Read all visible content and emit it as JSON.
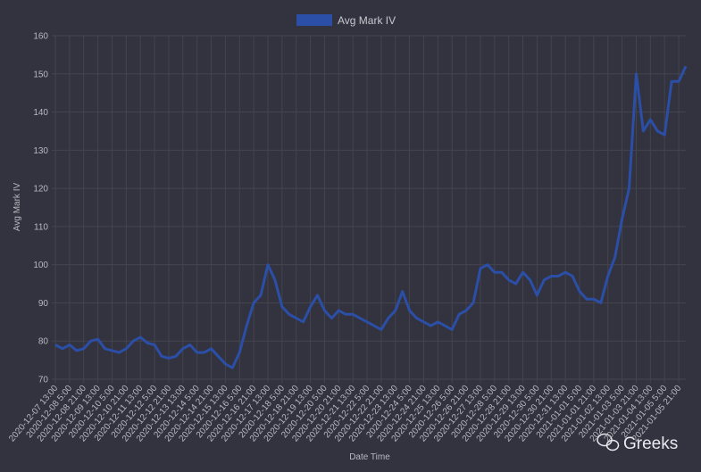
{
  "chart_data": {
    "type": "line",
    "y_label": "Avg Mark IV",
    "x_label": "Date Time",
    "watermark": "Greeks",
    "categories": [
      "2020-12-07 13:00",
      null,
      "2020-12-08 5:00",
      null,
      "2020-12-08 21:00",
      null,
      "2020-12-09 13:00",
      null,
      "2020-12-10 5:00",
      null,
      "2020-12-10 21:00",
      null,
      "2020-12-11 13:00",
      null,
      "2020-12-12 5:00",
      null,
      "2020-12-12 21:00",
      null,
      "2020-12-13 13:00",
      null,
      "2020-12-14 5:00",
      null,
      "2020-12-14 21:00",
      null,
      "2020-12-15 13:00",
      null,
      "2020-12-16 5:00",
      null,
      "2020-12-16 21:00",
      null,
      "2020-12-17 13:00",
      null,
      "2020-12-18 5:00",
      null,
      "2020-12-18 21:00",
      null,
      "2020-12-19 13:00",
      null,
      "2020-12-20 5:00",
      null,
      "2020-12-20 21:00",
      null,
      "2020-12-21 13:00",
      null,
      "2020-12-22 5:00",
      null,
      "2020-12-22 21:00",
      null,
      "2020-12-23 13:00",
      null,
      "2020-12-24 5:00",
      null,
      "2020-12-24 21:00",
      null,
      "2020-12-25 13:00",
      null,
      "2020-12-26 5:00",
      null,
      "2020-12-26 21:00",
      null,
      "2020-12-27 13:00",
      null,
      "2020-12-28 5:00",
      null,
      "2020-12-28 21:00",
      null,
      "2020-12-29 13:00",
      null,
      "2020-12-30 5:00",
      null,
      "2020-12-30 21:00",
      null,
      "2020-12-31 13:00",
      null,
      "2021-01-01 5:00",
      null,
      "2021-01-01 21:00",
      null,
      "2021-01-02 13:00",
      null,
      "2021-01-03 5:00",
      null,
      "2021-01-03 21:00",
      null,
      "2021-01-04 13:00",
      null,
      "2021-01-05 5:00",
      null,
      "2021-01-05 21:00",
      null
    ],
    "series": [
      {
        "name": "Avg Mark IV",
        "color": "#2b4ea6",
        "values": [
          79,
          78,
          79,
          77.5,
          78,
          80,
          80.5,
          78,
          77.5,
          77,
          78,
          80,
          81,
          79.5,
          79,
          76,
          75.5,
          76,
          78,
          79,
          77,
          77,
          78,
          76,
          74,
          73,
          77,
          84,
          90,
          92,
          100,
          96,
          89,
          87,
          86,
          85,
          89,
          92,
          88,
          86,
          88,
          87,
          87,
          86,
          85,
          84,
          83,
          86,
          88,
          93,
          88,
          86,
          85,
          84,
          85,
          84,
          83,
          87,
          88,
          90,
          99,
          100,
          98,
          98,
          96,
          95,
          98,
          96,
          92,
          96,
          97,
          97,
          98,
          97,
          93,
          91,
          91,
          90,
          97,
          102,
          112,
          120,
          150,
          135,
          138,
          135,
          134,
          148,
          148,
          152
        ]
      }
    ],
    "ylim": [
      70,
      160
    ],
    "yticks": [
      70,
      80,
      90,
      100,
      110,
      120,
      130,
      140,
      150,
      160
    ],
    "grid": true,
    "legend": "top"
  }
}
